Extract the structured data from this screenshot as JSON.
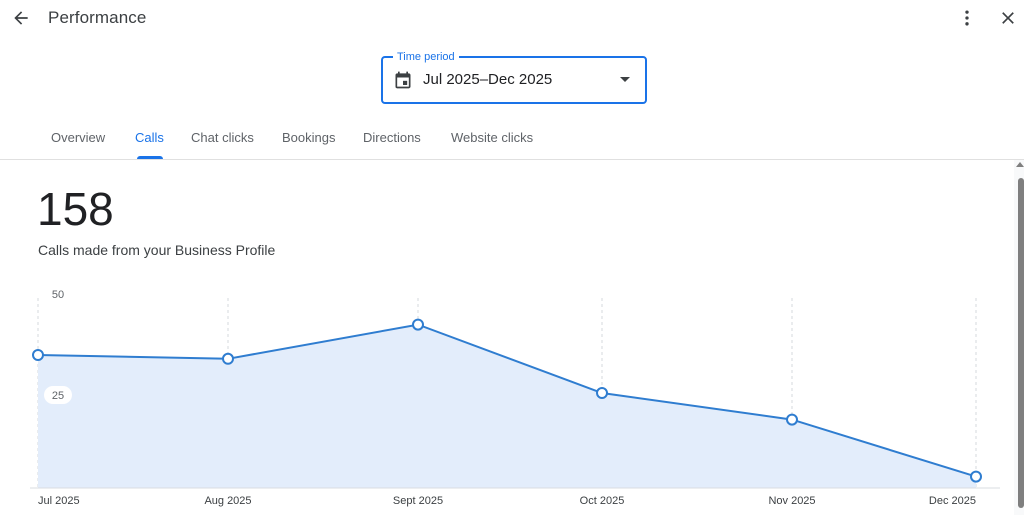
{
  "header": {
    "title": "Performance",
    "back_icon": "arrow-left-icon",
    "menu_icon": "more-vert-icon",
    "close_icon": "close-icon"
  },
  "period": {
    "label": "Time period",
    "value": "Jul 2025–Dec 2025",
    "accent": "#1a73e8"
  },
  "tabs": [
    {
      "label": "Overview",
      "active": false
    },
    {
      "label": "Calls",
      "active": true
    },
    {
      "label": "Chat clicks",
      "active": false
    },
    {
      "label": "Bookings",
      "active": false
    },
    {
      "label": "Directions",
      "active": false
    },
    {
      "label": "Website clicks",
      "active": false
    }
  ],
  "metric": {
    "value": "158",
    "label": "Calls made from your Business Profile"
  },
  "chart_data": {
    "type": "area",
    "categories": [
      "Jul 2025",
      "Aug 2025",
      "Sept 2025",
      "Oct 2025",
      "Nov 2025",
      "Dec 2025"
    ],
    "values": [
      35,
      34,
      43,
      25,
      18,
      3
    ],
    "y_ticks": [
      "50",
      "25"
    ],
    "ylim": [
      0,
      50
    ],
    "line_color": "#2f7dd0",
    "fill_color": "#e3edfb",
    "grid": "vertical dashed"
  }
}
